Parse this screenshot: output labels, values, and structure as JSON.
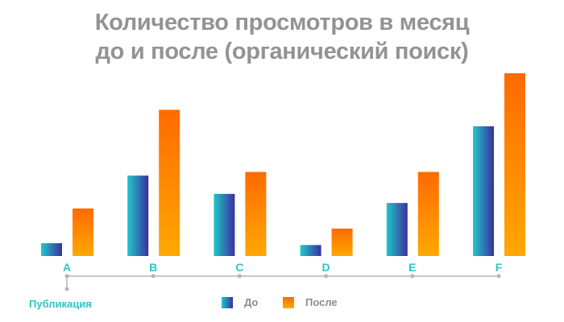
{
  "title_line1": "Количество просмотров в месяц",
  "title_line2": "до и после (органический поиск)",
  "publication_label": "Публикация",
  "colors": {
    "before_top": "#1fc8c8",
    "before_bottom": "#3b2fa0",
    "after_top": "#ff6a00",
    "after_bottom": "#ffa800",
    "axis": "#b5b5b5",
    "category_label": "#2ec4c4",
    "title": "#939393"
  },
  "chart_data": {
    "type": "bar",
    "title": "Количество просмотров в месяц до и после (органический поиск)",
    "xlabel": "",
    "ylabel": "",
    "categories": [
      "A",
      "B",
      "C",
      "D",
      "E",
      "F"
    ],
    "series": [
      {
        "name": "До",
        "values": [
          7,
          44,
          34,
          6,
          29,
          71
        ]
      },
      {
        "name": "После",
        "values": [
          26,
          80,
          46,
          15,
          46,
          100
        ]
      }
    ],
    "ylim": [
      0,
      100
    ],
    "grid": false,
    "legend": "bottom"
  }
}
